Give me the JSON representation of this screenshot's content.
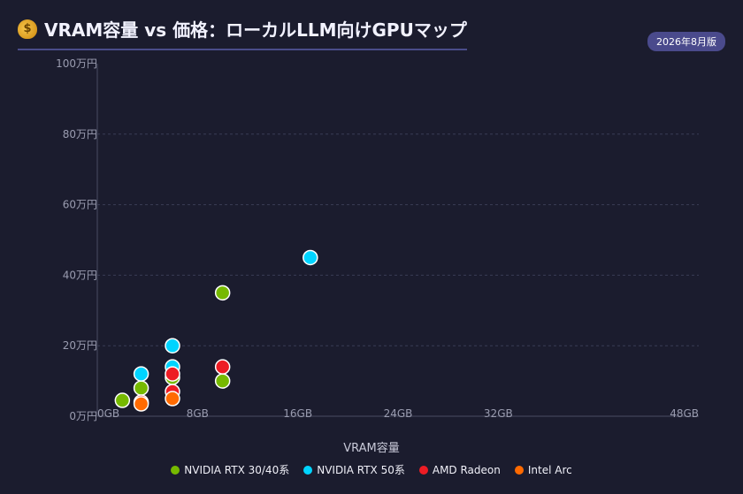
{
  "header": {
    "title": "VRAM容量 vs 価格：ローカルLLM向けGPUマップ",
    "badge": "2026年8月版"
  },
  "icons": {
    "title_icon": "money-bag-icon"
  },
  "chart_data": {
    "type": "scatter",
    "title": "VRAM容量 vs 価格：ローカルLLM向けGPUマップ",
    "xlabel": "VRAM容量",
    "ylabel": "",
    "xlim": [
      0,
      48
    ],
    "ylim": [
      0,
      100
    ],
    "x_ticks": [
      0,
      8,
      16,
      24,
      32,
      48
    ],
    "x_tick_labels": [
      "0GB",
      "8GB",
      "16GB",
      "24GB",
      "32GB",
      "48GB"
    ],
    "y_ticks": [
      0,
      20,
      40,
      60,
      80,
      100
    ],
    "y_tick_labels": [
      "0万円",
      "20万円",
      "40万円",
      "60万円",
      "80万円",
      "100万円"
    ],
    "grid": true,
    "legend_position": "bottom",
    "series": [
      {
        "name": "NVIDIA RTX 30/40系",
        "color": "#76b900",
        "points": [
          [
            2,
            4.5
          ],
          [
            3.5,
            8
          ],
          [
            6,
            11
          ],
          [
            10,
            35
          ],
          [
            10,
            10
          ]
        ]
      },
      {
        "name": "NVIDIA RTX 50系",
        "color": "#00d4ff",
        "points": [
          [
            3.5,
            12
          ],
          [
            6,
            20
          ],
          [
            6,
            14
          ],
          [
            17,
            45
          ]
        ]
      },
      {
        "name": "AMD Radeon",
        "color": "#ed1c24",
        "points": [
          [
            3.5,
            4
          ],
          [
            6,
            7
          ],
          [
            6,
            12
          ],
          [
            10,
            14
          ]
        ]
      },
      {
        "name": "Intel Arc",
        "color": "#ff6a00",
        "points": [
          [
            3.5,
            3.5
          ],
          [
            6,
            5
          ]
        ]
      }
    ]
  }
}
